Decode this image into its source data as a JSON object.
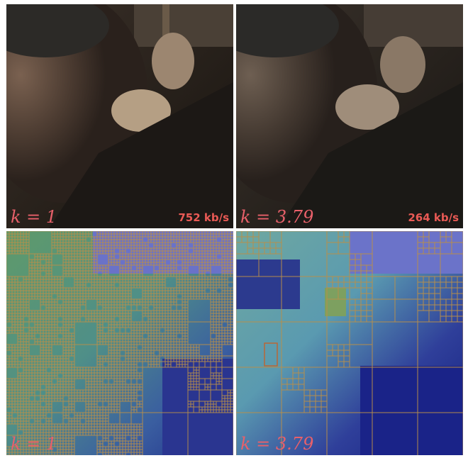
{
  "panels": [
    {
      "k_label": "k = 1",
      "bitrate": "752 kb/s"
    },
    {
      "k_label": "k = 3.79",
      "bitrate": "264 kb/s"
    },
    {
      "k_label": "k = 1"
    },
    {
      "k_label": "k = 3.79"
    }
  ],
  "colors": {
    "label": "#e8606a",
    "bitrate": "#ea5a55",
    "block_grid": "#b98f4a",
    "highlight_block": "#c0632e"
  }
}
